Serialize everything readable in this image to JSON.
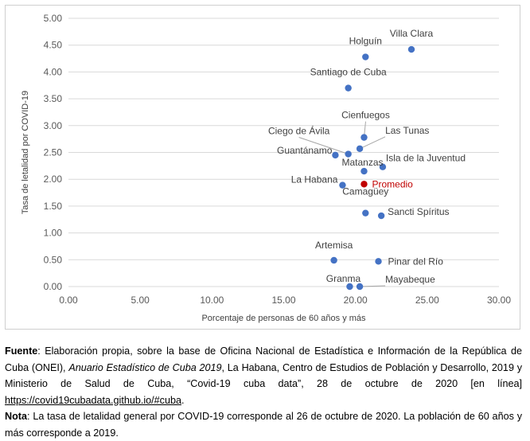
{
  "chart_data": {
    "type": "scatter",
    "xlabel": "Porcentaje de personas de 60 años y más",
    "ylabel": "Tasa de letalidad por COVID-19",
    "xlim": [
      0,
      30
    ],
    "ylim": [
      0,
      5
    ],
    "x_ticks": [
      "0.00",
      "5.00",
      "10.00",
      "15.00",
      "20.00",
      "25.00",
      "30.00"
    ],
    "y_ticks": [
      "0.00",
      "0.50",
      "1.00",
      "1.50",
      "2.00",
      "2.50",
      "3.00",
      "3.50",
      "4.00",
      "4.50",
      "5.00"
    ],
    "grid": "horizontal",
    "point_color": "#4472C4",
    "highlight_color": "#C00000",
    "points": [
      {
        "label": "Villa Clara",
        "x": 23.9,
        "y": 4.42
      },
      {
        "label": "Holguín",
        "x": 20.7,
        "y": 4.28
      },
      {
        "label": "Santiago de Cuba",
        "x": 19.5,
        "y": 3.7
      },
      {
        "label": "Cienfuegos",
        "x": 20.6,
        "y": 2.78
      },
      {
        "label": "Las Tunas",
        "x": 20.3,
        "y": 2.57
      },
      {
        "label": "Ciego de Ávila",
        "x": 19.5,
        "y": 2.47
      },
      {
        "label": "Guantánamo",
        "x": 18.6,
        "y": 2.45
      },
      {
        "label": "Isla de la Juventud",
        "x": 21.9,
        "y": 2.23
      },
      {
        "label": "Matanzas",
        "x": 20.6,
        "y": 2.15
      },
      {
        "label": "La Habana",
        "x": 19.1,
        "y": 1.89
      },
      {
        "label": "Promedio",
        "x": 20.6,
        "y": 1.91,
        "highlight": true
      },
      {
        "label": "Camagüey",
        "x": 20.7,
        "y": 1.37
      },
      {
        "label": "Sancti Spíritus",
        "x": 21.8,
        "y": 1.32
      },
      {
        "label": "Artemisa",
        "x": 18.5,
        "y": 0.49
      },
      {
        "label": "Pinar del Río",
        "x": 21.6,
        "y": 0.47
      },
      {
        "label": "Granma",
        "x": 19.6,
        "y": 0.0
      },
      {
        "label": "Mayabeque",
        "x": 20.3,
        "y": 0.0
      }
    ]
  },
  "notes": {
    "fuente_label": "Fuente",
    "fuente_text": ": Elaboración propia, sobre la base de Oficina Nacional de Estadística e Información de la República de Cuba (ONEI), ",
    "fuente_italic": "Anuario Estadístico de Cuba 2019",
    "fuente_text2": ", La Habana, Centro de Estudios de Población y Desarrollo, 2019 y Ministerio de Salud de Cuba, “Covid-19 cuba data”, 28 de octubre de 2020 [en línea] ",
    "fuente_link": "https://covid19cubadata.github.io/#cuba",
    "fuente_end": ".",
    "nota_label": "Nota",
    "nota_text": ": La tasa de letalidad general por COVID-19 corresponde al 26 de octubre de 2020. La población de 60 años y más corresponde a 2019."
  }
}
